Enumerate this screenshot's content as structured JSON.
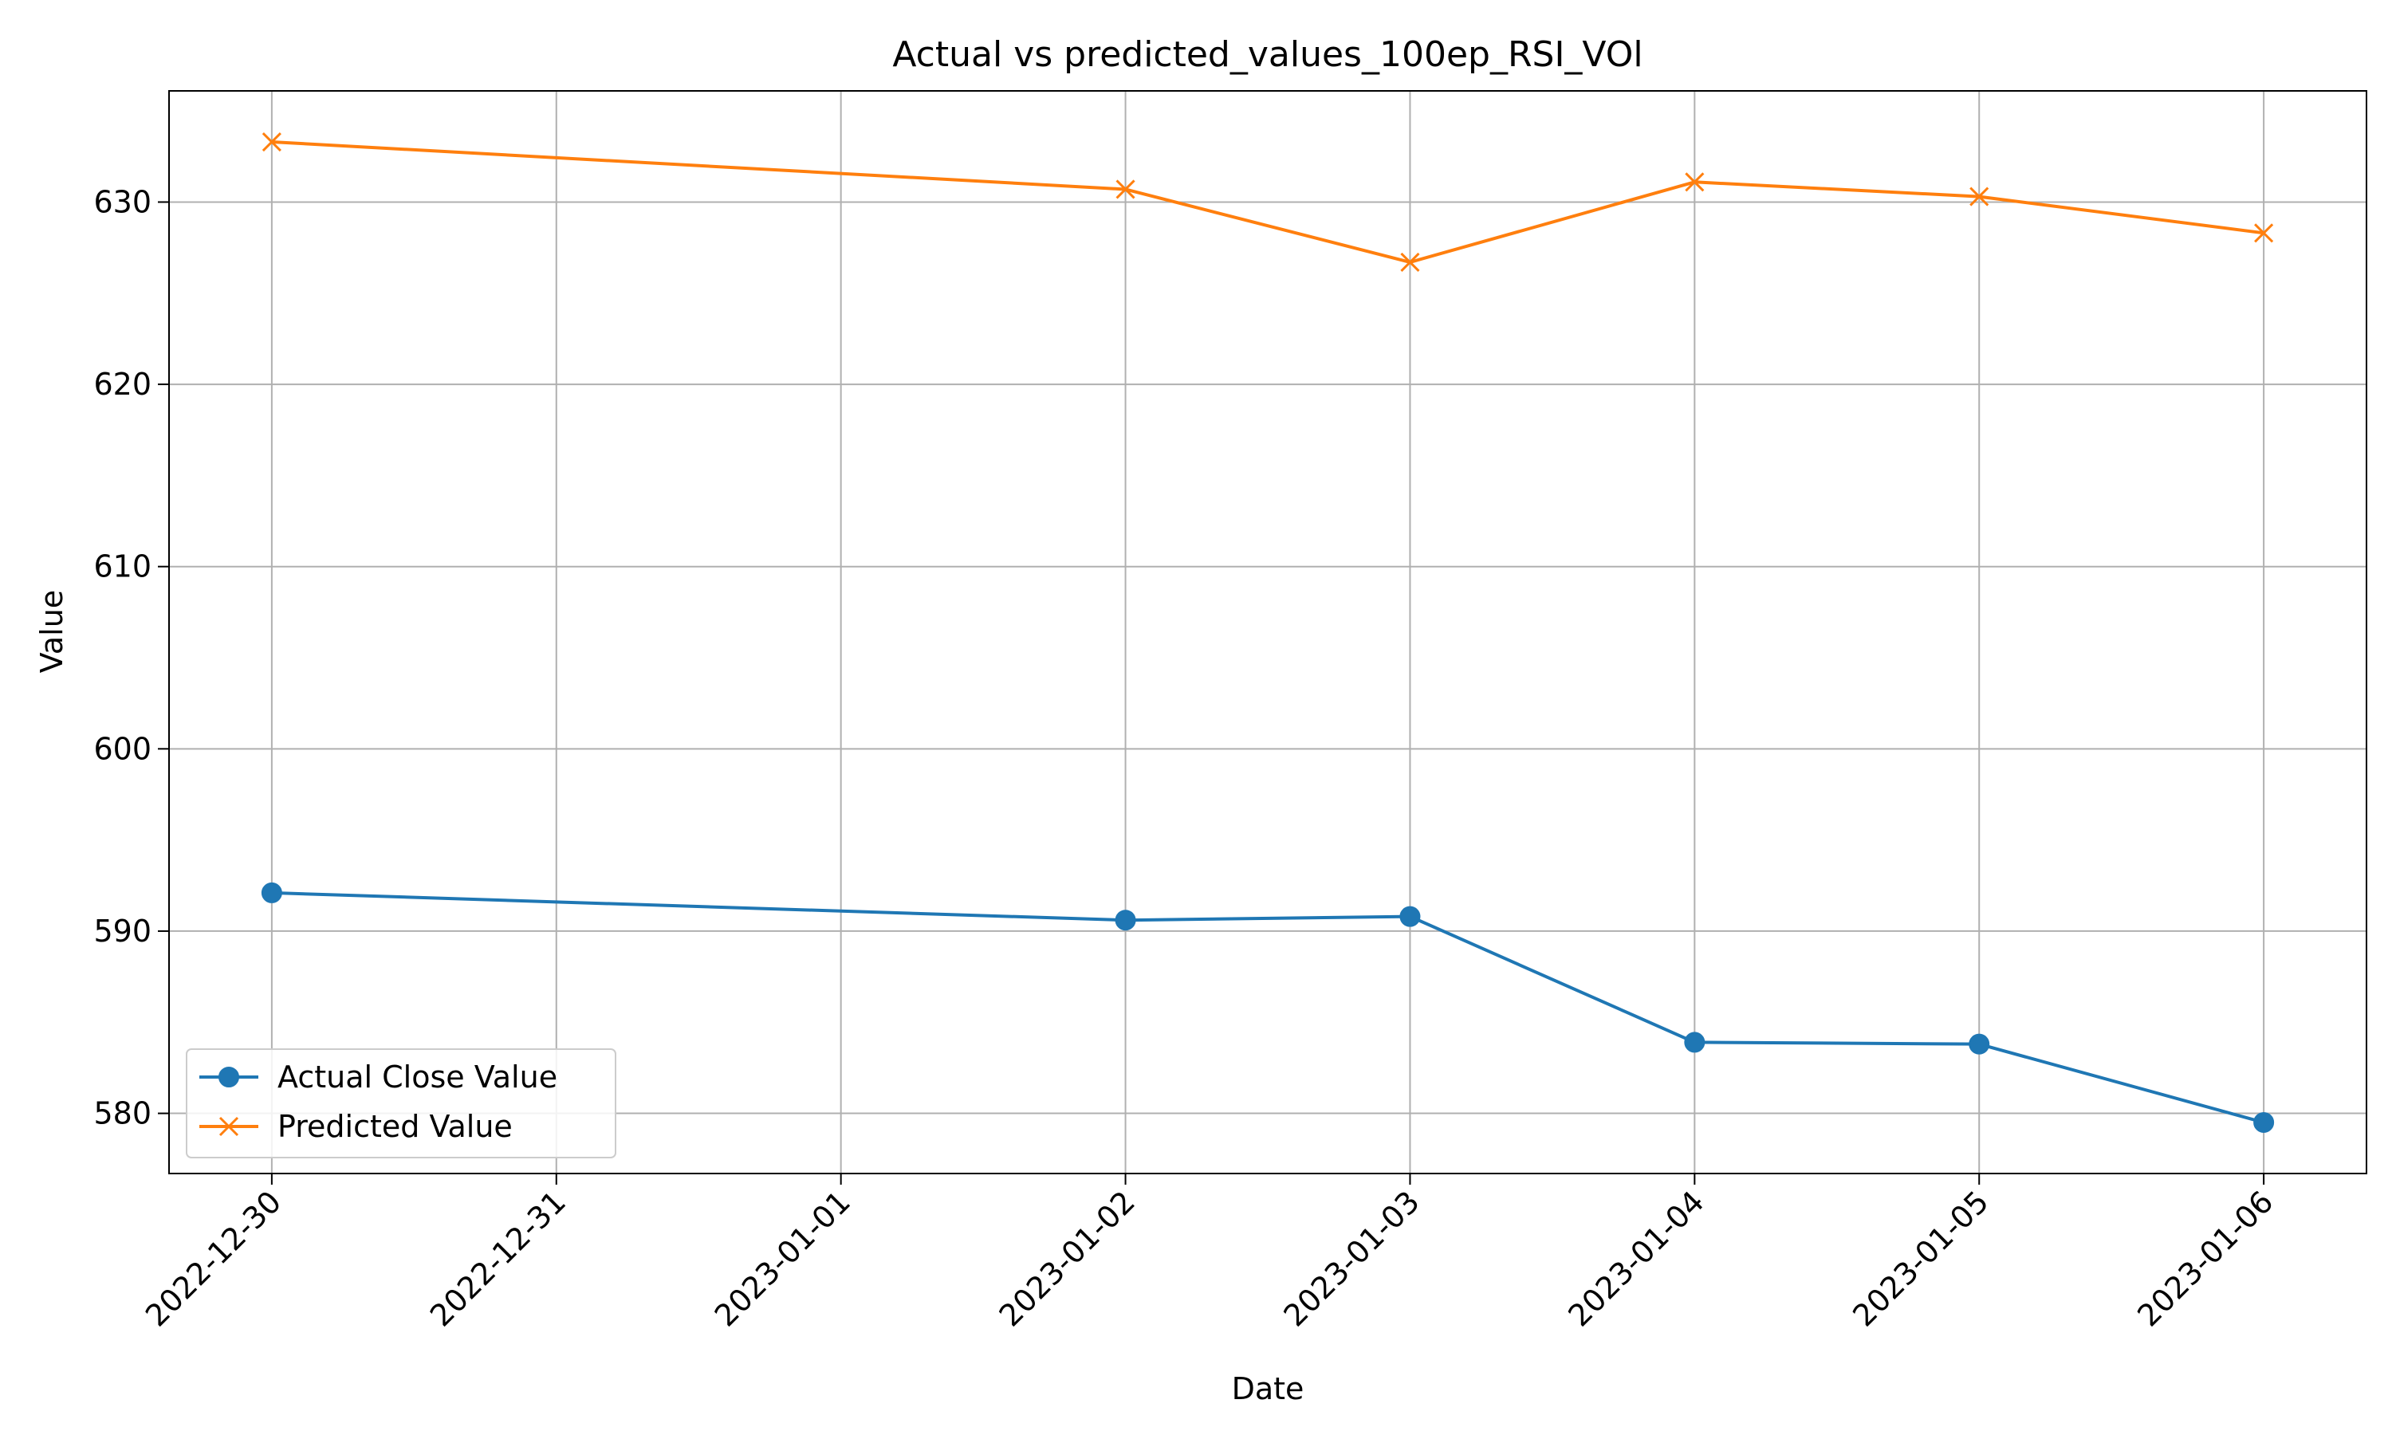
{
  "chart_data": {
    "type": "line",
    "title": "Actual vs predicted_values_100ep_RSI_VOl",
    "xlabel": "Date",
    "ylabel": "Value",
    "x_ticks": [
      "2022-12-30",
      "2022-12-31",
      "2023-01-01",
      "2023-01-02",
      "2023-01-03",
      "2023-01-04",
      "2023-01-05",
      "2023-01-06"
    ],
    "xlim": [
      "2022-12-29T15:20",
      "2023-01-06T08:40"
    ],
    "y_ticks": [
      580,
      590,
      600,
      610,
      620,
      630
    ],
    "ylim": [
      576.7,
      636.1
    ],
    "grid": true,
    "legend_position": "lower-left",
    "series": [
      {
        "name": "Actual Close Value",
        "color": "#1f77b4",
        "marker": "circle",
        "x": [
          "2022-12-30",
          "2023-01-02",
          "2023-01-03",
          "2023-01-04",
          "2023-01-05",
          "2023-01-06"
        ],
        "values": [
          592.1,
          590.6,
          590.8,
          583.9,
          583.8,
          579.5
        ]
      },
      {
        "name": "Predicted Value",
        "color": "#ff7f0e",
        "marker": "x",
        "x": [
          "2022-12-30",
          "2023-01-02",
          "2023-01-03",
          "2023-01-04",
          "2023-01-05",
          "2023-01-06"
        ],
        "values": [
          633.3,
          630.7,
          626.7,
          631.1,
          630.3,
          628.3
        ]
      }
    ]
  }
}
